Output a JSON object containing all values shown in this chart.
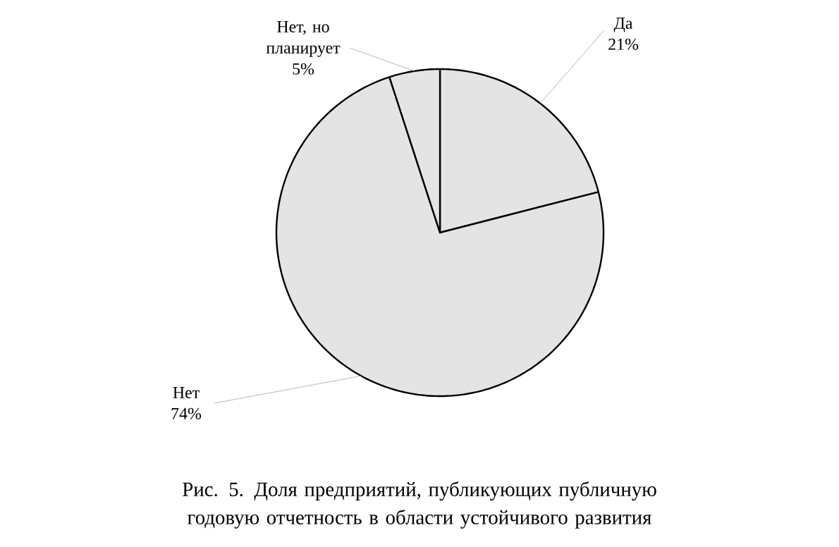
{
  "chart_data": {
    "type": "pie",
    "title": "Рис. 5. Доля предприятий, публикующих публичную годовую отчетность в области устойчивого развития",
    "categories": [
      "Да",
      "Нет",
      "Нет, но планирует"
    ],
    "values": [
      21,
      74,
      5
    ],
    "value_labels": [
      "21%",
      "74%",
      "5%"
    ],
    "colors": [
      "#e4e4e4",
      "#e4e4e4",
      "#e4e4e4"
    ]
  }
}
